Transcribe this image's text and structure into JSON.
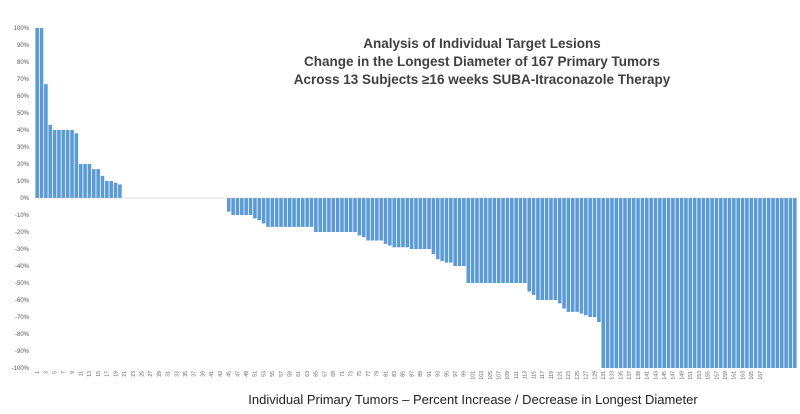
{
  "chart_data": {
    "type": "bar",
    "title_lines": [
      "Analysis of Individual Target Lesions",
      "Change in the Longest Diameter of 167 Primary Tumors",
      "Across 13 Subjects ≥16 weeks SUBA-Itraconazole Therapy"
    ],
    "xlabel": "Individual Primary Tumors – Percent Increase / Decrease in Longest Diameter",
    "ylabel": "",
    "ylim": [
      -100,
      100
    ],
    "y_ticks": [
      "100%",
      "90%",
      "80%",
      "70%",
      "60%",
      "50%",
      "40%",
      "30%",
      "20%",
      "10%",
      "0%",
      "-10%",
      "-20%",
      "-30%",
      "-40%",
      "-50%",
      "-60%",
      "-70%",
      "-80%",
      "-90%",
      "-100%"
    ],
    "y_tick_values": [
      100,
      90,
      80,
      70,
      60,
      50,
      40,
      30,
      20,
      10,
      0,
      -10,
      -20,
      -30,
      -40,
      -50,
      -60,
      -70,
      -80,
      -90,
      -100
    ],
    "x_tick_labels": [
      "1",
      "3",
      "5",
      "7",
      "9",
      "11",
      "13",
      "15",
      "17",
      "19",
      "21",
      "23",
      "25",
      "27",
      "29",
      "31",
      "33",
      "35",
      "37",
      "39",
      "41",
      "43",
      "45",
      "47",
      "49",
      "51",
      "53",
      "55",
      "57",
      "59",
      "61",
      "63",
      "65",
      "67",
      "69",
      "71",
      "73",
      "75",
      "77",
      "79",
      "81",
      "83",
      "85",
      "87",
      "89",
      "91",
      "93",
      "95",
      "97",
      "99",
      "101",
      "103",
      "105",
      "107",
      "109",
      "111",
      "113",
      "115",
      "117",
      "119",
      "121",
      "123",
      "125",
      "127",
      "129",
      "131",
      "133",
      "135",
      "137",
      "139",
      "141",
      "143",
      "145",
      "147",
      "149",
      "151",
      "153",
      "155",
      "157",
      "159",
      "161",
      "163",
      "165",
      "167"
    ],
    "bar_color": "#5b9bd5",
    "grid": false,
    "values": [
      100,
      100,
      67,
      43,
      40,
      40,
      40,
      40,
      40,
      38,
      20,
      20,
      20,
      17,
      17,
      13,
      10,
      10,
      9,
      8,
      0,
      0,
      0,
      0,
      0,
      0,
      0,
      0,
      0,
      0,
      0,
      0,
      0,
      0,
      0,
      0,
      0,
      0,
      0,
      0,
      0,
      0,
      0,
      0,
      -8,
      -10,
      -10,
      -10,
      -10,
      -10,
      -12,
      -13,
      -15,
      -17,
      -17,
      -17,
      -17,
      -17,
      -17,
      -17,
      -17,
      -17,
      -17,
      -17,
      -20,
      -20,
      -20,
      -20,
      -20,
      -20,
      -20,
      -20,
      -20,
      -20,
      -22,
      -23,
      -25,
      -25,
      -25,
      -25,
      -27,
      -28,
      -29,
      -29,
      -29,
      -29,
      -30,
      -30,
      -30,
      -30,
      -30,
      -33,
      -36,
      -37,
      -38,
      -38,
      -40,
      -40,
      -40,
      -50,
      -50,
      -50,
      -50,
      -50,
      -50,
      -50,
      -50,
      -50,
      -50,
      -50,
      -50,
      -50,
      -50,
      -55,
      -57,
      -60,
      -60,
      -60,
      -60,
      -60,
      -62,
      -65,
      -67,
      -67,
      -67,
      -68,
      -69,
      -70,
      -70,
      -73,
      -100,
      -100,
      -100,
      -100,
      -100,
      -100,
      -100,
      -100,
      -100,
      -100,
      -100,
      -100,
      -100,
      -100,
      -100,
      -100,
      -100,
      -100,
      -100,
      -100,
      -100,
      -100,
      -100,
      -100,
      -100,
      -100,
      -100,
      -100,
      -100,
      -100,
      -100,
      -100,
      -100,
      -100,
      -100,
      -100,
      -100,
      -100,
      -100,
      -100,
      -100,
      -100,
      -100,
      -100,
      -100
    ]
  }
}
